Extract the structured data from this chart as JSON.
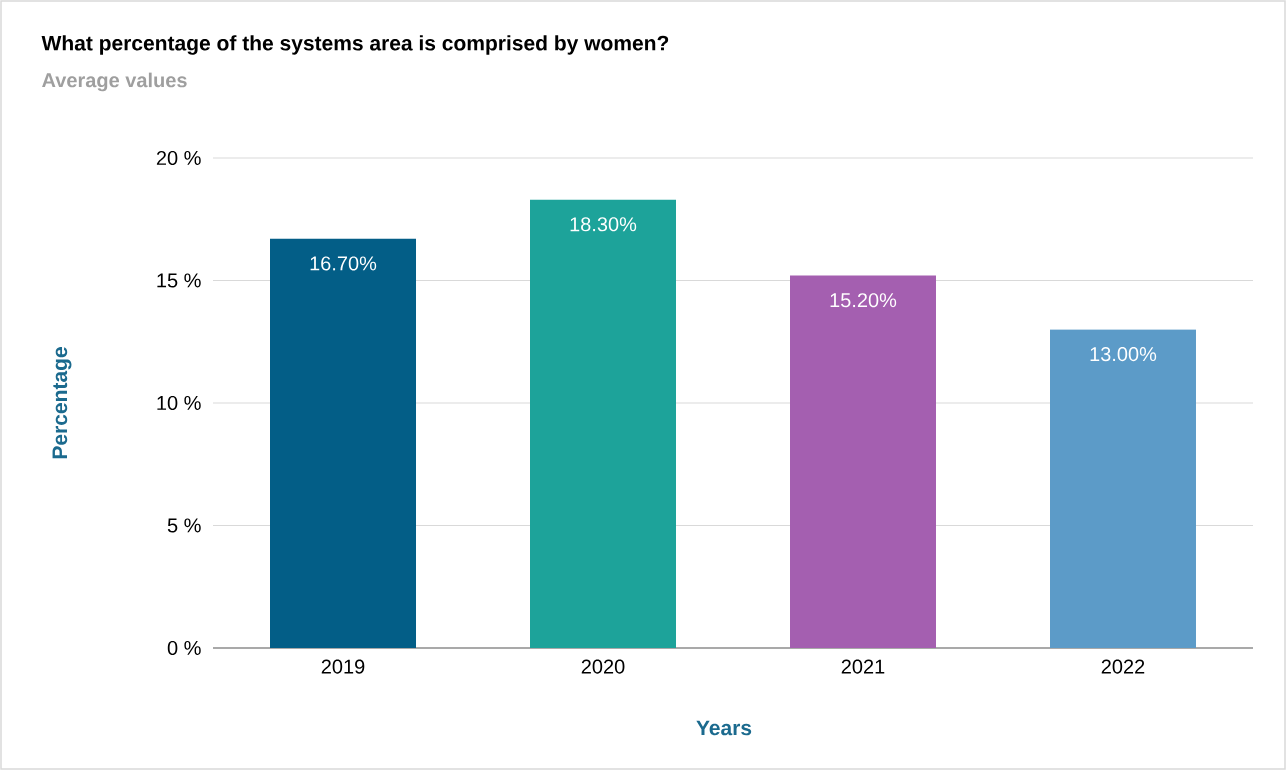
{
  "chart_data": {
    "type": "bar",
    "title": "What percentage of the systems area is comprised by women?",
    "subtitle": "Average values",
    "xlabel": "Years",
    "ylabel": "Percentage",
    "categories": [
      "2019",
      "2020",
      "2021",
      "2022"
    ],
    "values": [
      16.7,
      18.3,
      15.2,
      13.0
    ],
    "colors": [
      "#035e87",
      "#1da39a",
      "#a45fb0",
      "#5c9bc8"
    ],
    "value_labels": [
      "16.70%",
      "18.30%",
      "15.20%",
      "13.00%"
    ],
    "ylim": [
      0,
      20
    ],
    "yticks": [
      {
        "value": 0,
        "label": "0 %"
      },
      {
        "value": 5,
        "label": "5 %"
      },
      {
        "value": 10,
        "label": "10 %"
      },
      {
        "value": 15,
        "label": "15 %"
      },
      {
        "value": 20,
        "label": "20 %"
      }
    ],
    "grid": "y"
  }
}
